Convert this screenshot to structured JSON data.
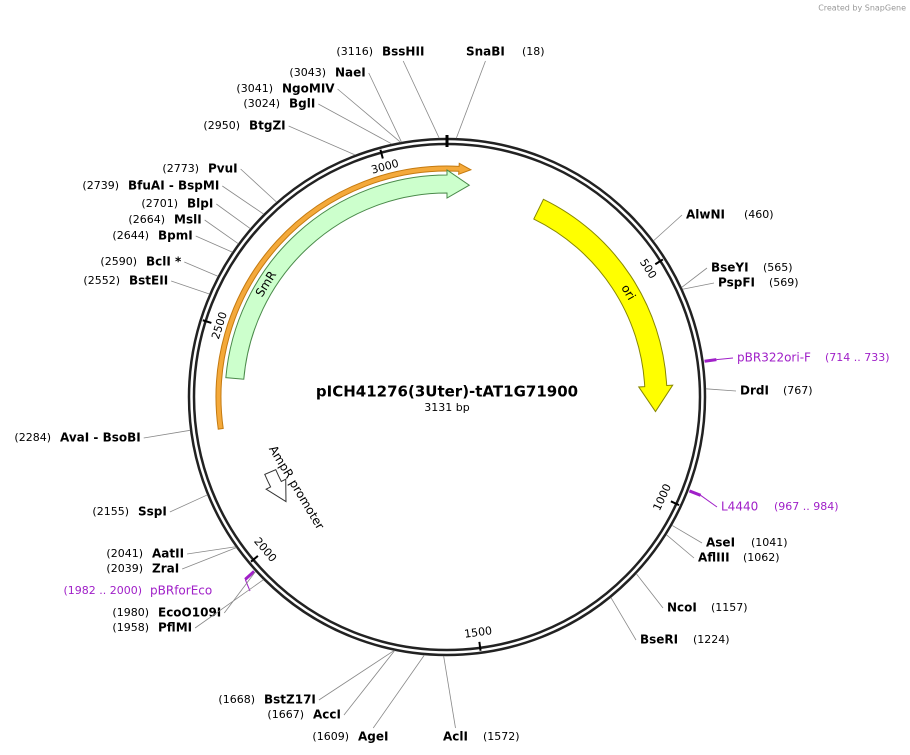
{
  "watermark": "Created by SnapGene",
  "map": {
    "name": "pICH41276(3Uter)-tAT1G71900",
    "length": "3131 bp"
  },
  "ring_ticks": [
    "500",
    "1000",
    "1500",
    "2000",
    "2500",
    "3000"
  ],
  "features": [
    {
      "name": "SmR"
    },
    {
      "name": "ori"
    },
    {
      "name": "AmpR promoter"
    }
  ],
  "primers": [
    {
      "name": "pBR322ori-F",
      "range": "(714 .. 733)"
    },
    {
      "name": "L4440",
      "range": "(967 .. 984)"
    },
    {
      "name": "pBRforEco",
      "range": "(1982 .. 2000)"
    }
  ],
  "sites": [
    {
      "name": "BssHII",
      "position": "(3116)"
    },
    {
      "name": "SnaBI",
      "position": "(18)"
    },
    {
      "name": "NaeI",
      "position": "(3043)"
    },
    {
      "name": "NgoMIV",
      "position": "(3041)"
    },
    {
      "name": "BglI",
      "position": "(3024)"
    },
    {
      "name": "BtgZI",
      "position": "(2950)"
    },
    {
      "name": "PvuI",
      "position": "(2773)"
    },
    {
      "name": "BfuAI - BspMI",
      "position": "(2739)"
    },
    {
      "name": "BlpI",
      "position": "(2701)"
    },
    {
      "name": "MslI",
      "position": "(2664)"
    },
    {
      "name": "BpmI",
      "position": "(2644)"
    },
    {
      "name": "BclI *",
      "position": "(2590)"
    },
    {
      "name": "BstEII",
      "position": "(2552)"
    },
    {
      "name": "AvaI - BsoBI",
      "position": "(2284)"
    },
    {
      "name": "SspI",
      "position": "(2155)"
    },
    {
      "name": "AatII",
      "position": "(2041)"
    },
    {
      "name": "ZraI",
      "position": "(2039)"
    },
    {
      "name": "EcoO109I",
      "position": "(1980)"
    },
    {
      "name": "PflMI",
      "position": "(1958)"
    },
    {
      "name": "BstZ17I",
      "position": "(1668)"
    },
    {
      "name": "AccI",
      "position": "(1667)"
    },
    {
      "name": "AgeI",
      "position": "(1609)"
    },
    {
      "name": "AclI",
      "position": "(1572)"
    },
    {
      "name": "BseRI",
      "position": "(1224)"
    },
    {
      "name": "NcoI",
      "position": "(1157)"
    },
    {
      "name": "AflIII",
      "position": "(1062)"
    },
    {
      "name": "AseI",
      "position": "(1041)"
    },
    {
      "name": "DrdI",
      "position": "(767)"
    },
    {
      "name": "PspFI",
      "position": "(569)"
    },
    {
      "name": "BseYI",
      "position": "(565)"
    },
    {
      "name": "AlwNI",
      "position": "(460)"
    }
  ]
}
